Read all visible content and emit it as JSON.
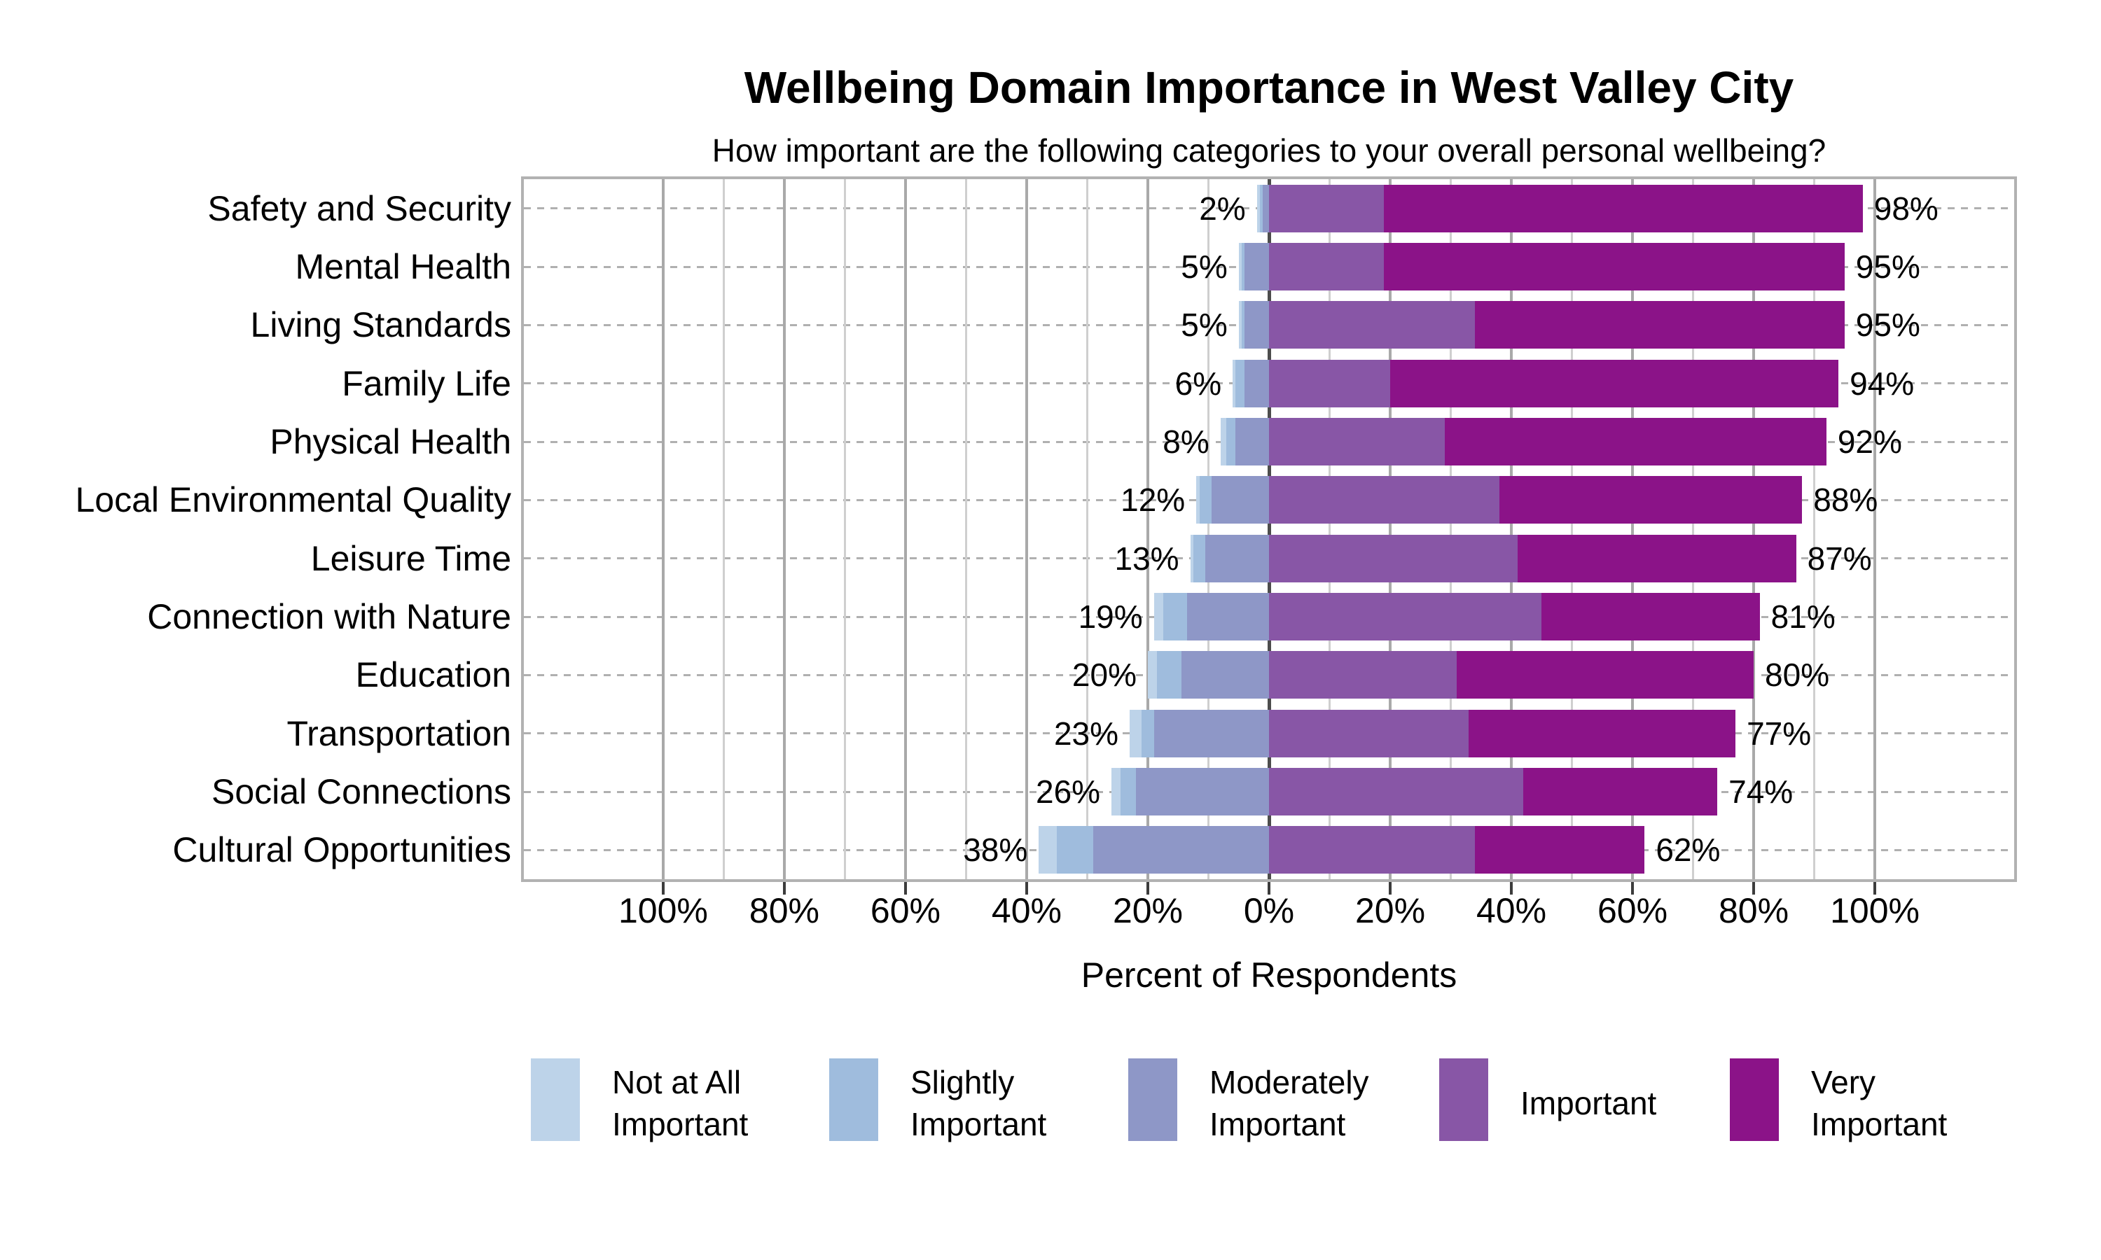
{
  "title": "Wellbeing Domain Importance in West Valley City",
  "subtitle": "How important are the following categories to your overall personal wellbeing?",
  "x_axis": {
    "label": "Percent of Respondents",
    "tick_values": [
      -100,
      -80,
      -60,
      -40,
      -20,
      0,
      20,
      40,
      60,
      80,
      100
    ],
    "tick_labels": [
      "100%",
      "80%",
      "60%",
      "40%",
      "20%",
      "0%",
      "20%",
      "40%",
      "60%",
      "80%",
      "100%"
    ]
  },
  "legend": [
    {
      "label": "Not at All Important",
      "lines": [
        "Not at All",
        "Important"
      ],
      "color": "#bdd3e9"
    },
    {
      "label": "Slightly Important",
      "lines": [
        "Slightly",
        "Important"
      ],
      "color": "#9fbcdd"
    },
    {
      "label": "Moderately Important",
      "lines": [
        "Moderately",
        "Important"
      ],
      "color": "#8e97c7"
    },
    {
      "label": "Important",
      "lines": [
        "Important"
      ],
      "color": "#8856a6"
    },
    {
      "label": "Very Important",
      "lines": [
        "Very",
        "Important"
      ],
      "color": "#8b1388"
    }
  ],
  "chart_data": {
    "type": "diverging_stacked_bar",
    "unit": "percent of respondents",
    "categories": [
      "Safety and Security",
      "Mental Health",
      "Living Standards",
      "Family Life",
      "Physical Health",
      "Local Environmental Quality",
      "Leisure Time",
      "Connection with Nature",
      "Education",
      "Transportation",
      "Social Connections",
      "Cultural Opportunities"
    ],
    "series": [
      {
        "name": "Not at All Important",
        "color": "#bdd3e9",
        "side": "negative",
        "values": [
          0.5,
          0.5,
          0.5,
          0.5,
          1,
          0.5,
          0.5,
          1.5,
          1.5,
          2,
          1.5,
          3
        ]
      },
      {
        "name": "Slightly Important",
        "color": "#9fbcdd",
        "side": "negative",
        "values": [
          0.5,
          0.5,
          0.5,
          1.5,
          1.5,
          2,
          2,
          4,
          4,
          2,
          2.5,
          6
        ]
      },
      {
        "name": "Moderately Important",
        "color": "#8e97c7",
        "side": "negative",
        "values": [
          1,
          4,
          4,
          4,
          5.5,
          9.5,
          10.5,
          13.5,
          14.5,
          19,
          22,
          29
        ]
      },
      {
        "name": "Important",
        "color": "#8856a6",
        "side": "positive",
        "values": [
          19,
          19,
          34,
          20,
          29,
          38,
          41,
          45,
          31,
          33,
          42,
          34
        ]
      },
      {
        "name": "Very Important",
        "color": "#8b1388",
        "side": "positive",
        "values": [
          79,
          76,
          61,
          74,
          63,
          50,
          46,
          36,
          49,
          44,
          32,
          28
        ]
      }
    ],
    "negative_total_labels": [
      "2%",
      "5%",
      "5%",
      "6%",
      "8%",
      "12%",
      "13%",
      "19%",
      "20%",
      "23%",
      "26%",
      "38%"
    ],
    "positive_total_labels": [
      "98%",
      "95%",
      "95%",
      "94%",
      "92%",
      "88%",
      "87%",
      "81%",
      "80%",
      "77%",
      "74%",
      "62%"
    ],
    "xlim": [
      -123,
      123
    ],
    "grid": {
      "minor_step": 10,
      "major_step": 20,
      "extent": 100,
      "legend_position": "bottom"
    }
  },
  "colors": {
    "zero_line": "#4d4d4d",
    "major_grid": "#a9a9a9",
    "minor_grid": "#cfcfcf",
    "frame": "#b2b2b2",
    "row_dash": "#b0b0b0",
    "tick": "#3c3c3c",
    "text": "#000000",
    "background": "#ffffff"
  }
}
